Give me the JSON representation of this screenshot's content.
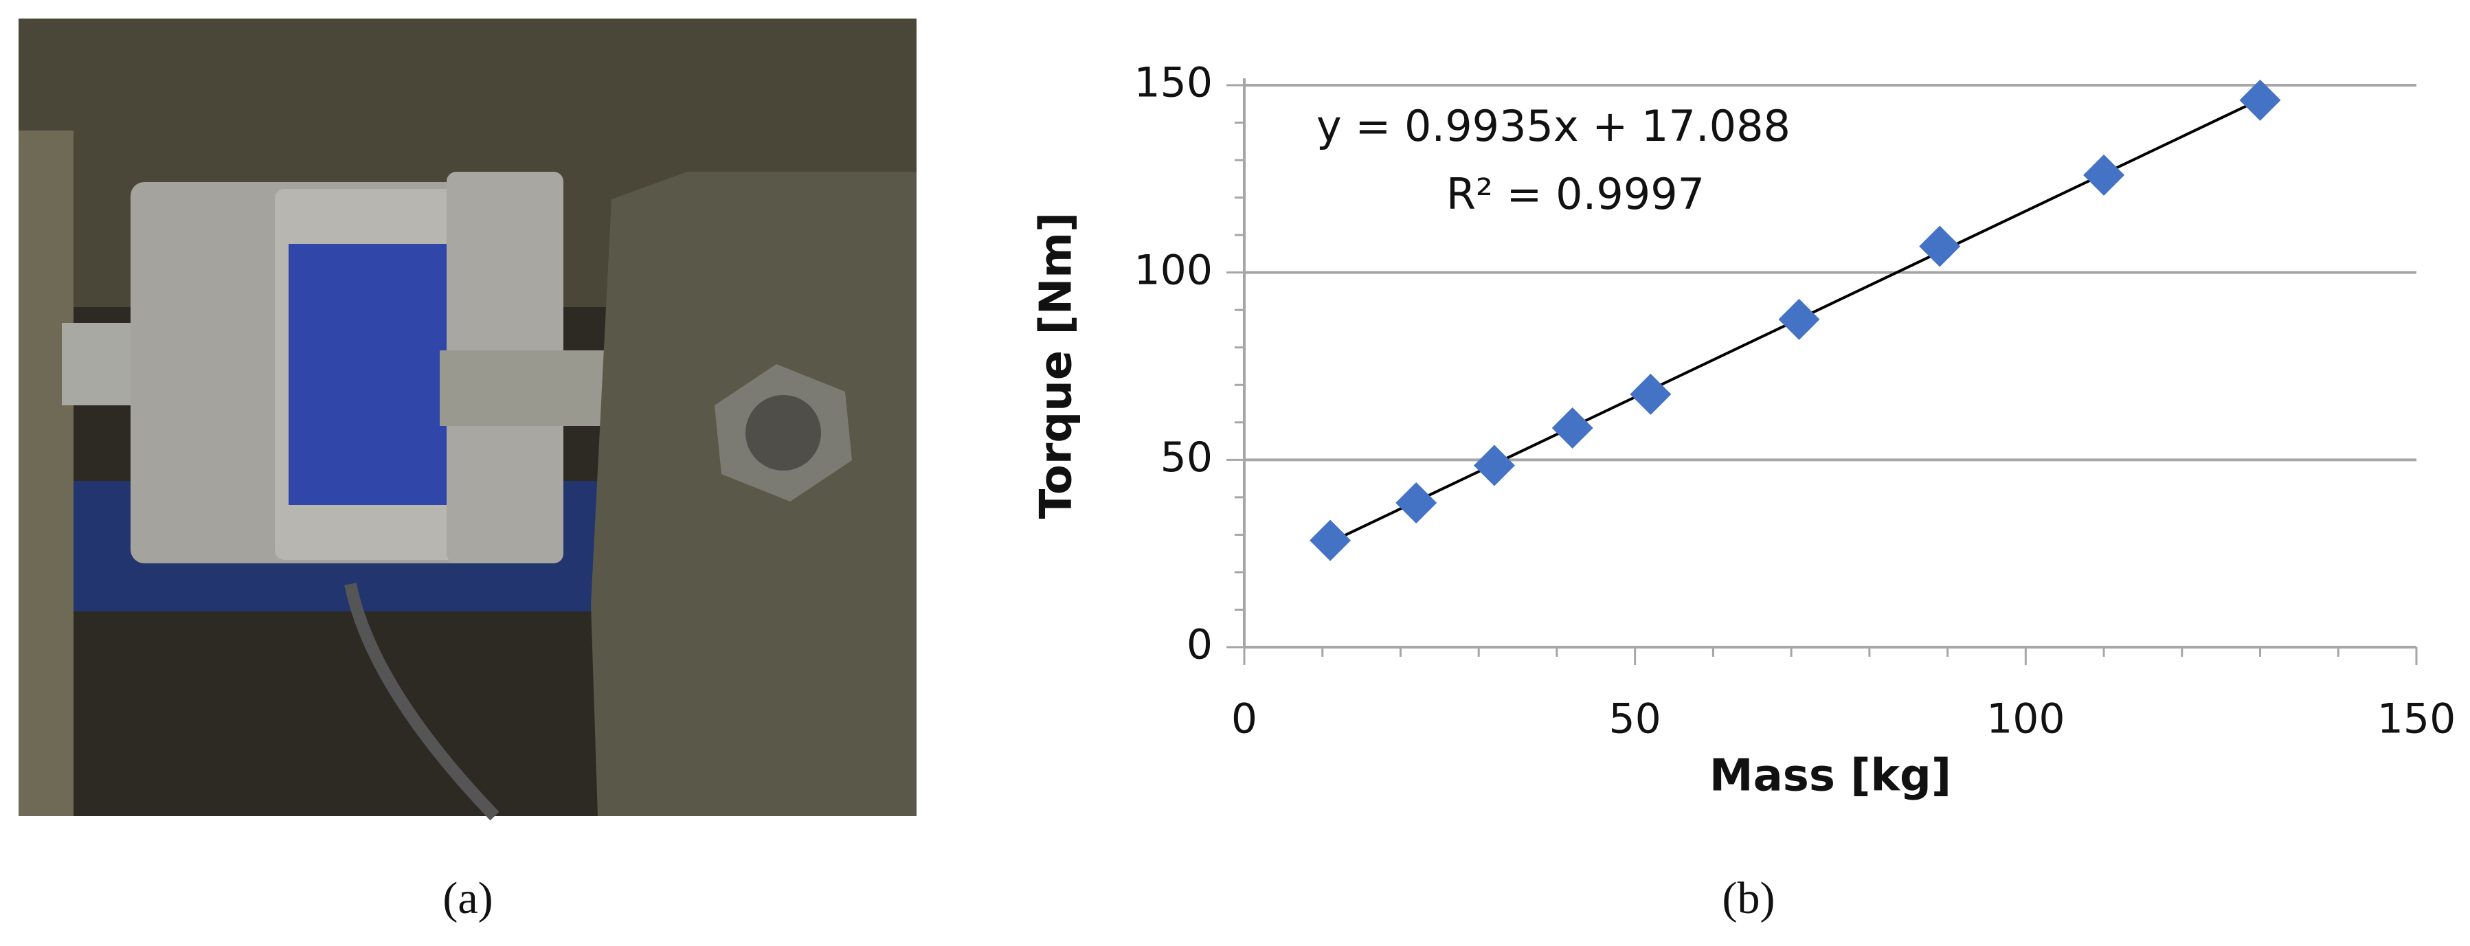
{
  "captions": [
    "(a)",
    "(b)"
  ],
  "chart_data": {
    "type": "scatter",
    "x_label": "Mass [kg]",
    "y_label": "Torque [Nm]",
    "equation": "y = 0.9935x + 17.088",
    "r_squared": "R² = 0.9997",
    "series": [
      {
        "name": "Torque",
        "color": "#4472c4",
        "x": [
          11,
          22,
          32,
          42,
          52,
          71,
          89,
          110,
          130
        ],
        "values": [
          28.5,
          38.5,
          48.5,
          58.5,
          67.5,
          87.5,
          107,
          126,
          146
        ]
      }
    ],
    "trendline": {
      "x": [
        11,
        130
      ],
      "values": [
        28,
        146.2
      ],
      "color": "#000000"
    },
    "xlim": [
      0,
      150
    ],
    "ylim": [
      0,
      150
    ],
    "xticks": [
      0,
      50,
      100,
      150
    ],
    "yticks": [
      0,
      50,
      100,
      150
    ],
    "xminorticks": [
      10,
      20,
      30,
      40,
      60,
      70,
      80,
      90,
      110,
      120,
      130,
      140
    ],
    "yminorticks": [
      10,
      20,
      30,
      40,
      60,
      70,
      80,
      90,
      110,
      120,
      130,
      140
    ],
    "grid": true
  }
}
